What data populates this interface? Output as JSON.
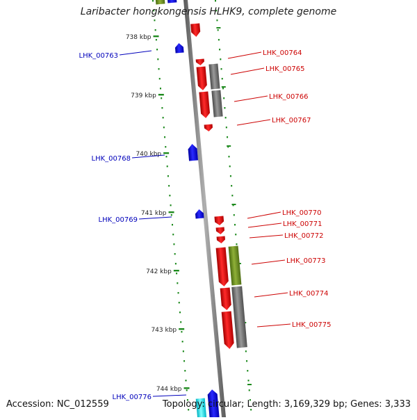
{
  "title": "Laribacter hongkongensis HLHK9, complete genome",
  "footer": {
    "accession": "Accession: NC_012559",
    "topology": "Topology: circular; Length: 3,169,329 bp; Genes: 3,333"
  },
  "colors": {
    "backbone": "#808080",
    "forward_cds": "#ff0000",
    "reverse_cds": "#0000ff",
    "gray_feature": "#707070",
    "green_feature": "#6b8e23",
    "tick": "#1e8a1e",
    "cyan_feature": "#00e5ee",
    "label_forward": "#cc0000",
    "label_reverse": "#0000bb"
  },
  "ticks": [
    "738 kbp",
    "739 kbp",
    "740 kbp",
    "741 kbp",
    "742 kbp",
    "743 kbp",
    "744 kbp"
  ],
  "genes_forward": [
    {
      "label": "LHK_00764"
    },
    {
      "label": "LHK_00765"
    },
    {
      "label": "LHK_00766"
    },
    {
      "label": "LHK_00767"
    },
    {
      "label": "LHK_00770"
    },
    {
      "label": "LHK_00771"
    },
    {
      "label": "LHK_00772"
    },
    {
      "label": "LHK_00773"
    },
    {
      "label": "LHK_00774"
    },
    {
      "label": "LHK_00775"
    }
  ],
  "genes_reverse": [
    {
      "label": "LHK_00763"
    },
    {
      "label": "LHK_00768"
    },
    {
      "label": "LHK_00769"
    },
    {
      "label": "LHK_00776"
    }
  ]
}
